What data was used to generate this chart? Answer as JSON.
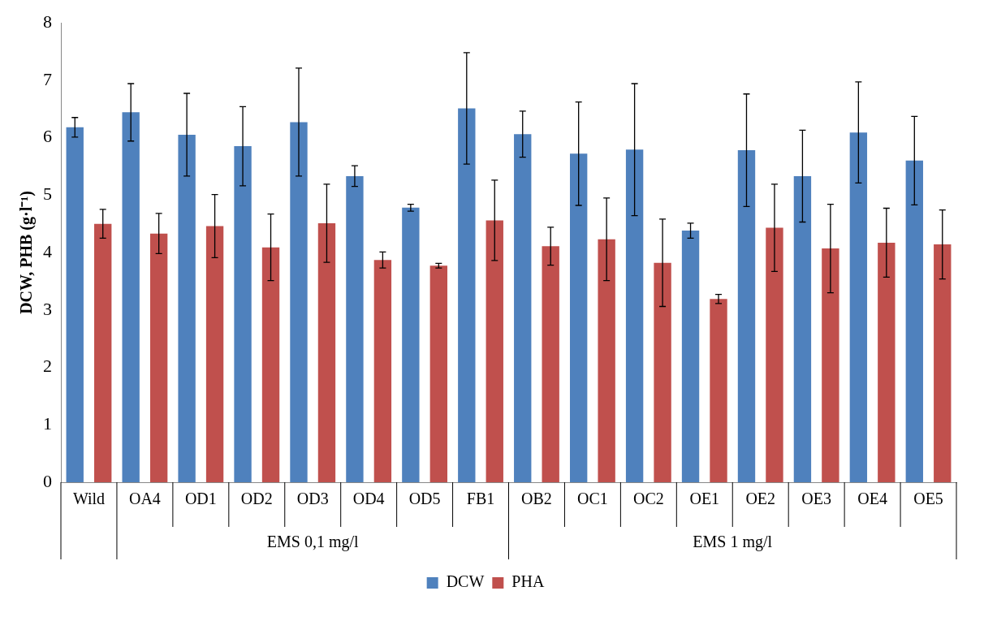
{
  "chart_data": {
    "type": "bar",
    "categories": [
      "Wild",
      "OA4",
      "OD1",
      "OD2",
      "OD3",
      "OD4",
      "OD5",
      "FB1",
      "OB2",
      "OC1",
      "OC2",
      "OE1",
      "OE2",
      "OE3",
      "OE4",
      "OE5"
    ],
    "series": [
      {
        "name": "DCW",
        "color": "#4f81bd",
        "values": [
          6.18,
          6.44,
          6.05,
          5.85,
          6.27,
          5.33,
          4.78,
          6.51,
          6.06,
          5.72,
          5.79,
          4.38,
          5.78,
          5.33,
          6.09,
          5.6
        ],
        "errors": [
          0.17,
          0.5,
          0.72,
          0.69,
          0.94,
          0.18,
          0.06,
          0.97,
          0.4,
          0.9,
          1.15,
          0.13,
          0.98,
          0.8,
          0.88,
          0.77
        ]
      },
      {
        "name": "PHA",
        "color": "#c0504d",
        "values": [
          4.5,
          4.33,
          4.46,
          4.09,
          4.51,
          3.87,
          3.77,
          4.56,
          4.11,
          4.23,
          3.82,
          3.19,
          4.43,
          4.07,
          4.17,
          4.14
        ],
        "errors": [
          0.25,
          0.35,
          0.55,
          0.58,
          0.68,
          0.14,
          0.04,
          0.7,
          0.33,
          0.72,
          0.76,
          0.08,
          0.76,
          0.77,
          0.6,
          0.6
        ]
      }
    ],
    "ylabel": "DCW, PHB (g·l⁻¹)",
    "ylim": [
      0,
      8
    ],
    "yticks": [
      0,
      1,
      2,
      3,
      4,
      5,
      6,
      7,
      8
    ],
    "annotations": [
      "EMS 0,1 mg/l",
      "EMS 1 mg/l"
    ],
    "grid": false,
    "legend": "bottom"
  }
}
